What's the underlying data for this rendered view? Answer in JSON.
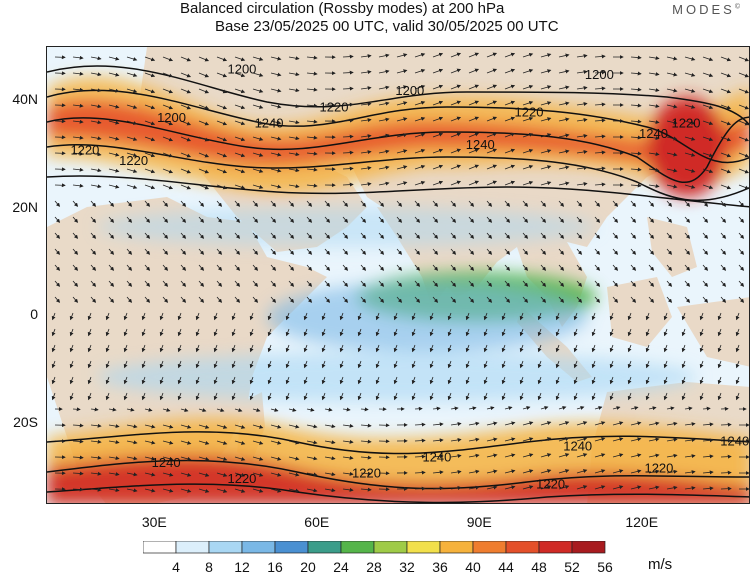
{
  "title_line1": "Balanced circulation (Rossby modes) at 200 hPa",
  "title_line2": "Base 23/05/2025 00 UTC, valid 30/05/2025 00 UTC",
  "logo_text": "MODES",
  "logo_mark": "©",
  "map": {
    "level": "200 hPa",
    "projection": "lat-lon",
    "lon_range": [
      10,
      140
    ],
    "lat_range": [
      -35,
      50
    ],
    "lat_ticks": [
      {
        "lat": 40,
        "label": "40N"
      },
      {
        "lat": 20,
        "label": "20N"
      },
      {
        "lat": 0,
        "label": "0"
      },
      {
        "lat": -20,
        "label": "20S"
      }
    ],
    "lon_ticks": [
      {
        "lon": 30,
        "label": "30E"
      },
      {
        "lon": 60,
        "label": "60E"
      },
      {
        "lon": 90,
        "label": "90E"
      },
      {
        "lon": 120,
        "label": "120E"
      }
    ],
    "contour_labels": [
      {
        "text": "1200",
        "lon": 46,
        "lat": 46
      },
      {
        "text": "1200",
        "lon": 77,
        "lat": 42
      },
      {
        "text": "1200",
        "lon": 112,
        "lat": 45
      },
      {
        "text": "1200",
        "lon": 33,
        "lat": 37
      },
      {
        "text": "1220",
        "lon": 63,
        "lat": 39
      },
      {
        "text": "1220",
        "lon": 99,
        "lat": 38
      },
      {
        "text": "1220",
        "lon": 128,
        "lat": 36
      },
      {
        "text": "1220",
        "lon": 17,
        "lat": 31
      },
      {
        "text": "1220",
        "lon": 26,
        "lat": 29
      },
      {
        "text": "1240",
        "lon": 51,
        "lat": 36
      },
      {
        "text": "1240",
        "lon": 90,
        "lat": 32
      },
      {
        "text": "1240",
        "lon": 122,
        "lat": 34
      },
      {
        "text": "1240",
        "lon": 108,
        "lat": -24
      },
      {
        "text": "1240",
        "lon": 137,
        "lat": -23
      },
      {
        "text": "1240",
        "lon": 32,
        "lat": -27
      },
      {
        "text": "1240",
        "lon": 82,
        "lat": -26
      },
      {
        "text": "1220",
        "lon": 46,
        "lat": -30
      },
      {
        "text": "1220",
        "lon": 69,
        "lat": -29
      },
      {
        "text": "1220",
        "lon": 103,
        "lat": -31
      },
      {
        "text": "1220",
        "lon": 123,
        "lat": -28
      }
    ]
  },
  "colorbar": {
    "labels": [
      "4",
      "8",
      "12",
      "16",
      "20",
      "24",
      "28",
      "32",
      "36",
      "40",
      "44",
      "48",
      "52",
      "56"
    ],
    "colors": [
      "#ffffff",
      "#dceffb",
      "#a9d7f3",
      "#7ab8e6",
      "#4a90d2",
      "#3b9d8a",
      "#55b54a",
      "#9fcb47",
      "#f2e04b",
      "#f6b23c",
      "#ef7d2f",
      "#e4502a",
      "#d02a26",
      "#a81b1f"
    ],
    "units": "m/s"
  }
}
